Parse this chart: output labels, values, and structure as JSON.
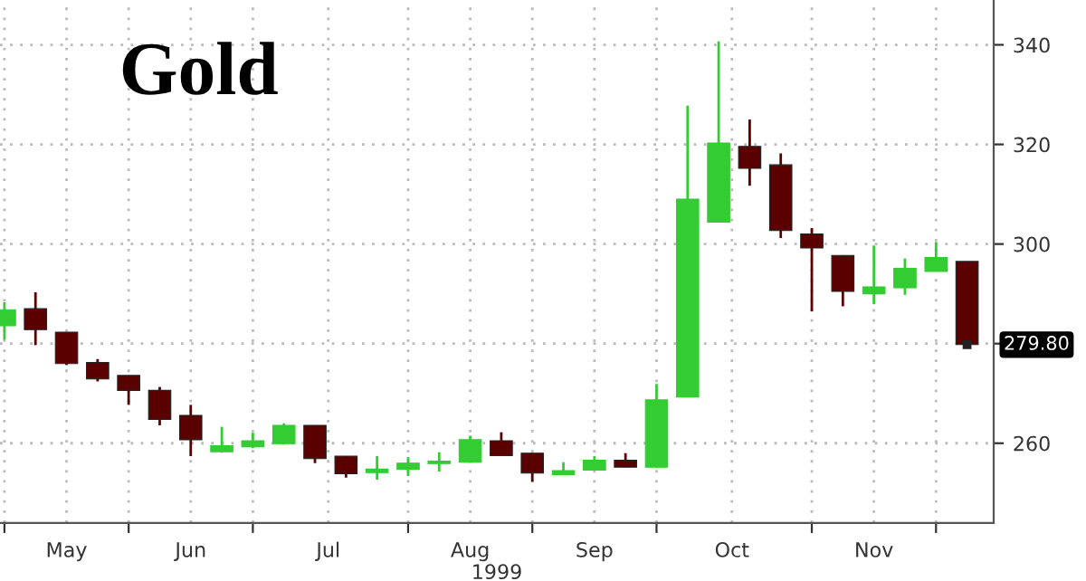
{
  "chart_data": {
    "type": "candlestick",
    "title": "Gold",
    "xlabel": "1999",
    "x": [
      "1999-05-07",
      "1999-05-14",
      "1999-05-21",
      "1999-05-28",
      "1999-06-04",
      "1999-06-11",
      "1999-06-18",
      "1999-06-25",
      "1999-07-02",
      "1999-07-09",
      "1999-07-16",
      "1999-07-23",
      "1999-07-30",
      "1999-08-06",
      "1999-08-13",
      "1999-08-20",
      "1999-08-27",
      "1999-09-03",
      "1999-09-10",
      "1999-09-17",
      "1999-09-24",
      "1999-10-01",
      "1999-10-08",
      "1999-10-15",
      "1999-10-22",
      "1999-10-29",
      "1999-11-05",
      "1999-11-12",
      "1999-11-19",
      "1999-11-26",
      "1999-12-03",
      "1999-12-10"
    ],
    "ohlc": [
      [
        283.6,
        288.3,
        280.8,
        286.8
      ],
      [
        287.0,
        290.3,
        279.7,
        282.8
      ],
      [
        282.3,
        282.3,
        275.7,
        276.0
      ],
      [
        276.2,
        276.9,
        272.4,
        272.9
      ],
      [
        273.6,
        273.6,
        267.7,
        270.6
      ],
      [
        270.6,
        271.3,
        263.6,
        264.8
      ],
      [
        265.6,
        267.7,
        257.4,
        260.7
      ],
      [
        258.3,
        263.3,
        258.1,
        259.5
      ],
      [
        259.3,
        262.1,
        259.0,
        260.5
      ],
      [
        259.9,
        264.0,
        259.9,
        263.6
      ],
      [
        263.6,
        263.6,
        256.0,
        256.9
      ],
      [
        257.4,
        257.4,
        253.1,
        253.9
      ],
      [
        254.1,
        257.4,
        252.7,
        254.8
      ],
      [
        254.8,
        257.2,
        253.4,
        256.0
      ],
      [
        255.9,
        258.2,
        254.3,
        256.4
      ],
      [
        256.2,
        261.5,
        256.2,
        260.7
      ],
      [
        260.5,
        262.2,
        257.5,
        257.5
      ],
      [
        258.0,
        258.0,
        252.3,
        254.0
      ],
      [
        253.7,
        256.2,
        253.7,
        254.5
      ],
      [
        254.6,
        257.4,
        254.6,
        256.6
      ],
      [
        256.6,
        258.0,
        255.2,
        255.2
      ],
      [
        255.2,
        271.9,
        255.2,
        268.7
      ],
      [
        269.3,
        327.8,
        269.3,
        309.0
      ],
      [
        304.4,
        340.7,
        304.4,
        320.3
      ],
      [
        319.6,
        325.0,
        311.7,
        315.2
      ],
      [
        315.9,
        318.2,
        301.2,
        302.7
      ],
      [
        302.0,
        303.2,
        286.5,
        299.2
      ],
      [
        297.7,
        297.7,
        287.5,
        290.5
      ],
      [
        290.0,
        299.7,
        287.9,
        291.4
      ],
      [
        291.2,
        297.1,
        289.8,
        295.1
      ],
      [
        294.5,
        300.4,
        294.5,
        297.3
      ],
      [
        296.5,
        296.5,
        279.8,
        279.8
      ]
    ],
    "colors": [
      "#33cc33",
      "#5a0000",
      "#5a0000",
      "#5a0000",
      "#5a0000",
      "#5a0000",
      "#5a0000",
      "#33cc33",
      "#33cc33",
      "#33cc33",
      "#5a0000",
      "#5a0000",
      "#33cc33",
      "#33cc33",
      "#33cc33",
      "#33cc33",
      "#5a0000",
      "#5a0000",
      "#33cc33",
      "#33cc33",
      "#5a0000",
      "#33cc33",
      "#33cc33",
      "#33cc33",
      "#5a0000",
      "#5a0000",
      "#5a0000",
      "#5a0000",
      "#33cc33",
      "#33cc33",
      "#33cc33",
      "#5a0000"
    ],
    "xlim": [
      "1999-05-06",
      "1999-12-16"
    ],
    "xticks": [
      {
        "value": "1999-05-07",
        "label": null
      },
      {
        "value": "1999-05-21",
        "label": "May"
      },
      {
        "value": "1999-06-04",
        "label": null
      },
      {
        "value": "1999-06-18",
        "label": "Jun"
      },
      {
        "value": "1999-07-02",
        "label": null
      },
      {
        "value": "1999-07-19",
        "label": "Jul"
      },
      {
        "value": "1999-08-06",
        "label": null
      },
      {
        "value": "1999-08-20",
        "label": "Aug"
      },
      {
        "value": "1999-09-03",
        "label": null
      },
      {
        "value": "1999-09-17",
        "label": "Sep"
      },
      {
        "value": "1999-10-01",
        "label": null
      },
      {
        "value": "1999-10-18",
        "label": "Oct"
      },
      {
        "value": "1999-11-05",
        "label": null
      },
      {
        "value": "1999-11-19",
        "label": "Nov"
      },
      {
        "value": "1999-12-03",
        "label": null
      }
    ],
    "ylim": [
      244,
      349
    ],
    "yticks": [
      260,
      {
        "value": 280,
        "label": null
      },
      300,
      320,
      340
    ],
    "grid": true,
    "annotations": [
      {
        "text": "279.80",
        "x": "1999-12-10",
        "y": 279.8
      }
    ]
  }
}
